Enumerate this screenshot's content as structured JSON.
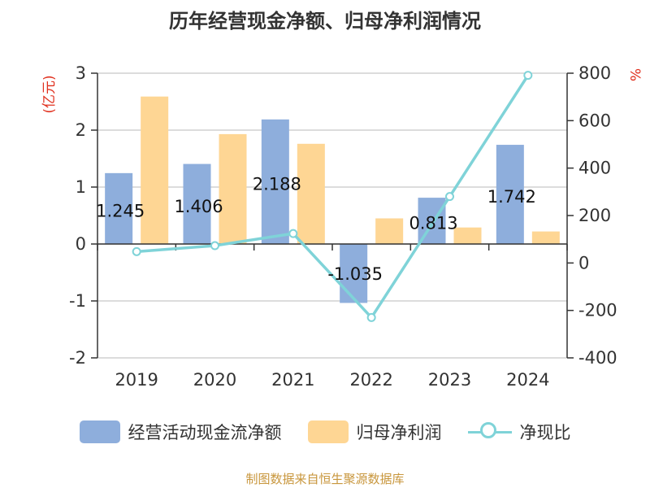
{
  "title": "历年经营现金净额、归母净利润情况",
  "source": "制图数据来自恒生聚源数据库",
  "colors": {
    "cash": "#8eaedc",
    "profit": "#fed694",
    "ratio": "#7fd3d8",
    "unit": "#e0301e"
  },
  "chart_data": {
    "type": "bar",
    "title": "历年经营现金净额、归母净利润情况",
    "categories": [
      "2019",
      "2020",
      "2021",
      "2022",
      "2023",
      "2024"
    ],
    "y_left": {
      "label": "(亿元)",
      "range": [
        -2,
        3
      ],
      "ticks": [
        "3",
        "2",
        "1",
        "0",
        "-1",
        "-2"
      ]
    },
    "y_right": {
      "label": "%",
      "range": [
        -400,
        800
      ],
      "ticks": [
        "800",
        "600",
        "400",
        "200",
        "0",
        "-200",
        "-400"
      ]
    },
    "series": [
      {
        "name": "经营活动现金流净额",
        "type": "bar",
        "axis": "left",
        "values": [
          1.245,
          1.406,
          2.188,
          -1.035,
          0.813,
          1.742
        ],
        "labels": [
          "1.245",
          "1.406",
          "2.188",
          "-1.035",
          "0.813",
          "1.742"
        ]
      },
      {
        "name": "归母净利润",
        "type": "bar",
        "axis": "left",
        "values": [
          2.59,
          1.93,
          1.76,
          0.45,
          0.29,
          0.22
        ]
      },
      {
        "name": "净现比",
        "type": "line",
        "axis": "right",
        "values": [
          48,
          73,
          124,
          -230,
          280,
          791
        ]
      }
    ],
    "grid": true,
    "legend_position": "bottom"
  }
}
